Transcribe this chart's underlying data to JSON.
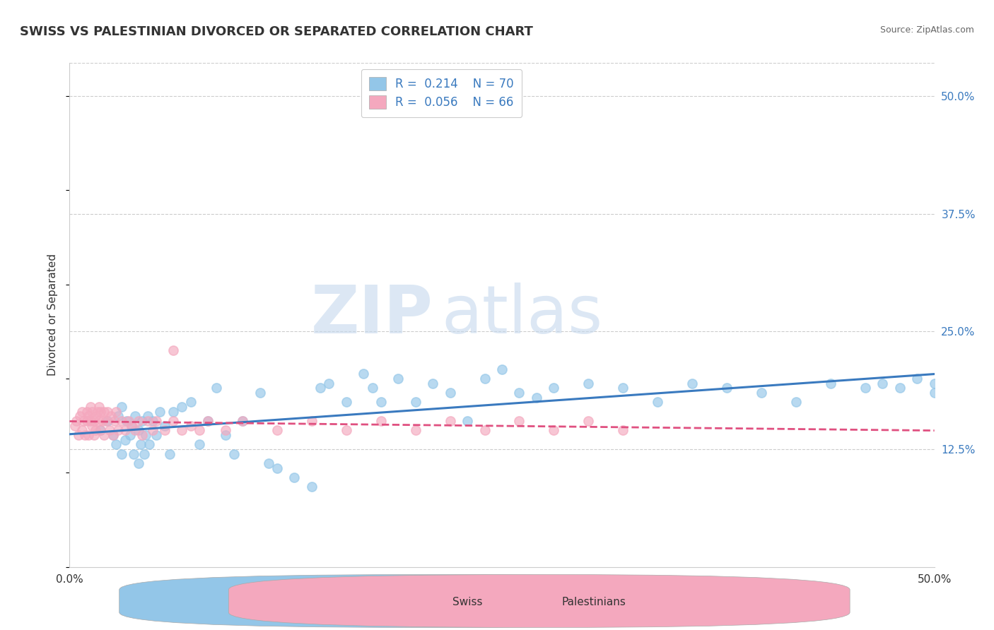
{
  "title": "SWISS VS PALESTINIAN DIVORCED OR SEPARATED CORRELATION CHART",
  "source": "Source: ZipAtlas.com",
  "xlabel": "",
  "ylabel": "Divorced or Separated",
  "xlim": [
    0.0,
    0.5
  ],
  "ylim": [
    0.0,
    0.535
  ],
  "yticks": [
    0.125,
    0.25,
    0.375,
    0.5
  ],
  "ytick_labels": [
    "12.5%",
    "25.0%",
    "37.5%",
    "50.0%"
  ],
  "xticks": [
    0.0,
    0.125,
    0.25,
    0.375,
    0.5
  ],
  "xtick_labels": [
    "0.0%",
    "",
    "",
    "",
    "50.0%"
  ],
  "legend_R_swiss": "0.214",
  "legend_N_swiss": "70",
  "legend_R_pal": "0.056",
  "legend_N_pal": "66",
  "swiss_color": "#93c6e8",
  "pal_color": "#f4a8be",
  "swiss_line_color": "#3a7abf",
  "pal_line_color": "#e05080",
  "background_color": "#ffffff",
  "grid_color": "#cccccc",
  "watermark_zip": "ZIP",
  "watermark_atlas": "atlas",
  "swiss_x": [
    0.018,
    0.022,
    0.025,
    0.027,
    0.028,
    0.03,
    0.03,
    0.032,
    0.033,
    0.035,
    0.036,
    0.037,
    0.038,
    0.04,
    0.04,
    0.041,
    0.042,
    0.043,
    0.044,
    0.045,
    0.046,
    0.048,
    0.05,
    0.052,
    0.055,
    0.058,
    0.06,
    0.065,
    0.07,
    0.075,
    0.08,
    0.085,
    0.09,
    0.095,
    0.1,
    0.11,
    0.115,
    0.12,
    0.13,
    0.14,
    0.145,
    0.15,
    0.16,
    0.17,
    0.175,
    0.18,
    0.19,
    0.2,
    0.21,
    0.22,
    0.23,
    0.24,
    0.25,
    0.26,
    0.27,
    0.28,
    0.3,
    0.32,
    0.34,
    0.36,
    0.38,
    0.4,
    0.42,
    0.44,
    0.46,
    0.47,
    0.48,
    0.49,
    0.5,
    0.5
  ],
  "swiss_y": [
    0.145,
    0.155,
    0.14,
    0.13,
    0.16,
    0.12,
    0.17,
    0.135,
    0.155,
    0.14,
    0.15,
    0.12,
    0.16,
    0.11,
    0.145,
    0.13,
    0.155,
    0.12,
    0.14,
    0.16,
    0.13,
    0.155,
    0.14,
    0.165,
    0.15,
    0.12,
    0.165,
    0.17,
    0.175,
    0.13,
    0.155,
    0.19,
    0.14,
    0.12,
    0.155,
    0.185,
    0.11,
    0.105,
    0.095,
    0.085,
    0.19,
    0.195,
    0.175,
    0.205,
    0.19,
    0.175,
    0.2,
    0.175,
    0.195,
    0.185,
    0.155,
    0.2,
    0.21,
    0.185,
    0.18,
    0.19,
    0.195,
    0.19,
    0.175,
    0.195,
    0.19,
    0.185,
    0.175,
    0.195,
    0.19,
    0.195,
    0.19,
    0.2,
    0.185,
    0.195
  ],
  "pal_x": [
    0.003,
    0.004,
    0.005,
    0.006,
    0.007,
    0.007,
    0.008,
    0.009,
    0.01,
    0.01,
    0.011,
    0.011,
    0.012,
    0.012,
    0.013,
    0.013,
    0.014,
    0.014,
    0.015,
    0.015,
    0.016,
    0.017,
    0.017,
    0.018,
    0.018,
    0.019,
    0.02,
    0.02,
    0.021,
    0.022,
    0.023,
    0.024,
    0.025,
    0.026,
    0.027,
    0.028,
    0.03,
    0.032,
    0.034,
    0.036,
    0.038,
    0.04,
    0.042,
    0.045,
    0.048,
    0.05,
    0.055,
    0.06,
    0.065,
    0.07,
    0.075,
    0.08,
    0.09,
    0.1,
    0.12,
    0.14,
    0.16,
    0.18,
    0.2,
    0.22,
    0.24,
    0.26,
    0.28,
    0.3,
    0.32,
    0.06
  ],
  "pal_y": [
    0.15,
    0.155,
    0.14,
    0.16,
    0.145,
    0.165,
    0.155,
    0.14,
    0.165,
    0.155,
    0.14,
    0.16,
    0.155,
    0.17,
    0.15,
    0.165,
    0.155,
    0.14,
    0.16,
    0.145,
    0.165,
    0.155,
    0.17,
    0.145,
    0.165,
    0.155,
    0.165,
    0.14,
    0.155,
    0.165,
    0.145,
    0.16,
    0.14,
    0.155,
    0.165,
    0.145,
    0.155,
    0.145,
    0.155,
    0.15,
    0.145,
    0.155,
    0.14,
    0.155,
    0.145,
    0.155,
    0.145,
    0.155,
    0.145,
    0.15,
    0.145,
    0.155,
    0.145,
    0.155,
    0.145,
    0.155,
    0.145,
    0.155,
    0.145,
    0.155,
    0.145,
    0.155,
    0.145,
    0.155,
    0.145,
    0.23
  ]
}
